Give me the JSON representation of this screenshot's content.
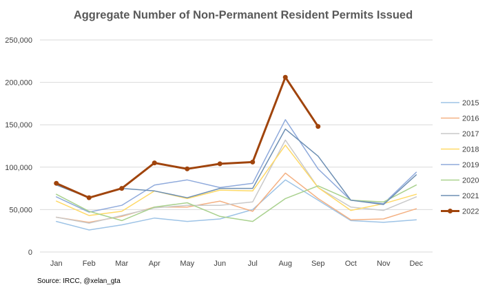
{
  "chart_data": {
    "type": "line",
    "title": "Aggregate Number of Non-Permanent Resident Permits Issued",
    "source": "Source: IRCC, @xelan_gta",
    "xlabel": "",
    "ylabel": "",
    "categories": [
      "Jan",
      "Feb",
      "Mar",
      "Apr",
      "May",
      "Jun",
      "Jul",
      "Aug",
      "Sep",
      "Oct",
      "Nov",
      "Dec"
    ],
    "y_ticks": [
      "0",
      "50,000",
      "100,000",
      "150,000",
      "200,000",
      "250,000"
    ],
    "ylim": [
      0,
      250000
    ],
    "grid": true,
    "legend_position": "right",
    "series": [
      {
        "name": "2015",
        "color": "#9dc3e6",
        "width": 1.5,
        "markers": false,
        "values": [
          36000,
          26000,
          32000,
          40000,
          36000,
          39000,
          50000,
          85000,
          61000,
          37000,
          35000,
          38000
        ]
      },
      {
        "name": "2016",
        "color": "#f4b183",
        "width": 1.5,
        "markers": false,
        "values": [
          41000,
          35000,
          42000,
          53000,
          53000,
          60000,
          48000,
          93000,
          63000,
          38000,
          39000,
          51000
        ]
      },
      {
        "name": "2017",
        "color": "#c9c9c9",
        "width": 1.5,
        "markers": false,
        "values": [
          41000,
          34000,
          43000,
          52000,
          55000,
          55000,
          59000,
          132000,
          76000,
          53000,
          49000,
          65000
        ]
      },
      {
        "name": "2018",
        "color": "#ffd966",
        "width": 1.5,
        "markers": false,
        "values": [
          60000,
          43000,
          48000,
          72000,
          63000,
          73000,
          72000,
          126000,
          76000,
          49000,
          57000,
          68000
        ]
      },
      {
        "name": "2019",
        "color": "#8faadc",
        "width": 1.5,
        "markers": false,
        "values": [
          65000,
          47000,
          55000,
          79000,
          85000,
          76000,
          81000,
          156000,
          98000,
          61000,
          57000,
          94000
        ]
      },
      {
        "name": "2020",
        "color": "#a9d18e",
        "width": 1.5,
        "markers": false,
        "values": [
          68000,
          48000,
          37000,
          53000,
          58000,
          42000,
          36000,
          63000,
          78000,
          61000,
          59000,
          79000
        ]
      },
      {
        "name": "2021",
        "color": "#6d8fb3",
        "width": 1.5,
        "markers": false,
        "values": [
          79000,
          64000,
          75000,
          72000,
          64000,
          75000,
          75000,
          145000,
          113000,
          61000,
          56000,
          91000
        ]
      },
      {
        "name": "2022",
        "color": "#a0440c",
        "width": 3,
        "markers": true,
        "values": [
          81000,
          64000,
          75000,
          105000,
          98000,
          104000,
          106000,
          206000,
          148000,
          null,
          null,
          null
        ]
      }
    ]
  }
}
